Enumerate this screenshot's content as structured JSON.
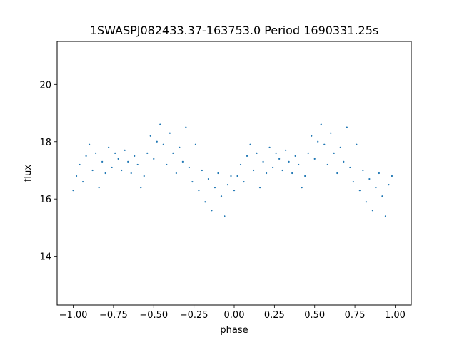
{
  "chart_data": {
    "type": "scatter",
    "title": "1SWASPJ082433.37-163753.0 Period 1690331.25s",
    "xlabel": "phase",
    "ylabel": "flux",
    "xlim": [
      -1.1,
      1.1
    ],
    "ylim": [
      12.3,
      21.5
    ],
    "xticks": [
      -1.0,
      -0.75,
      -0.5,
      -0.25,
      0.0,
      0.25,
      0.5,
      0.75,
      1.0
    ],
    "xtick_labels": [
      "−1.00",
      "−0.75",
      "−0.50",
      "−0.25",
      "0.00",
      "0.25",
      "0.50",
      "0.75",
      "1.00"
    ],
    "yticks": [
      14,
      16,
      18,
      20
    ],
    "ytick_labels": [
      "14",
      "16",
      "18",
      "20"
    ],
    "grid": false,
    "legend": "none",
    "series": [
      {
        "color": "#1f77b4",
        "marker": "dot",
        "description": "folded light curve, pattern repeats with period 1 in phase (same points at phase and phase-1)",
        "points": [
          [
            0.0,
            16.3
          ],
          [
            0.02,
            16.8
          ],
          [
            0.04,
            17.2
          ],
          [
            0.06,
            16.6
          ],
          [
            0.08,
            17.5
          ],
          [
            0.1,
            17.9
          ],
          [
            0.12,
            17.0
          ],
          [
            0.14,
            17.6
          ],
          [
            0.16,
            16.4
          ],
          [
            0.18,
            17.3
          ],
          [
            0.2,
            16.9
          ],
          [
            0.22,
            17.8
          ],
          [
            0.24,
            17.1
          ],
          [
            0.26,
            17.6
          ],
          [
            0.28,
            17.4
          ],
          [
            0.3,
            17.0
          ],
          [
            0.32,
            17.7
          ],
          [
            0.34,
            17.3
          ],
          [
            0.36,
            16.9
          ],
          [
            0.38,
            17.5
          ],
          [
            0.4,
            17.2
          ],
          [
            0.42,
            16.4
          ],
          [
            0.44,
            16.8
          ],
          [
            0.46,
            17.6
          ],
          [
            0.48,
            18.2
          ],
          [
            0.5,
            17.4
          ],
          [
            0.52,
            18.0
          ],
          [
            0.54,
            18.6
          ],
          [
            0.56,
            17.9
          ],
          [
            0.58,
            17.2
          ],
          [
            0.6,
            18.3
          ],
          [
            0.62,
            17.6
          ],
          [
            0.64,
            16.9
          ],
          [
            0.66,
            17.8
          ],
          [
            0.68,
            17.3
          ],
          [
            0.7,
            18.5
          ],
          [
            0.72,
            17.1
          ],
          [
            0.74,
            16.6
          ],
          [
            0.76,
            17.9
          ],
          [
            0.78,
            16.3
          ],
          [
            0.8,
            17.0
          ],
          [
            0.82,
            15.9
          ],
          [
            0.84,
            16.7
          ],
          [
            0.86,
            15.6
          ],
          [
            0.88,
            16.4
          ],
          [
            0.9,
            16.9
          ],
          [
            0.92,
            16.1
          ],
          [
            0.94,
            15.4
          ],
          [
            0.96,
            16.5
          ],
          [
            0.98,
            16.8
          ]
        ]
      }
    ]
  }
}
